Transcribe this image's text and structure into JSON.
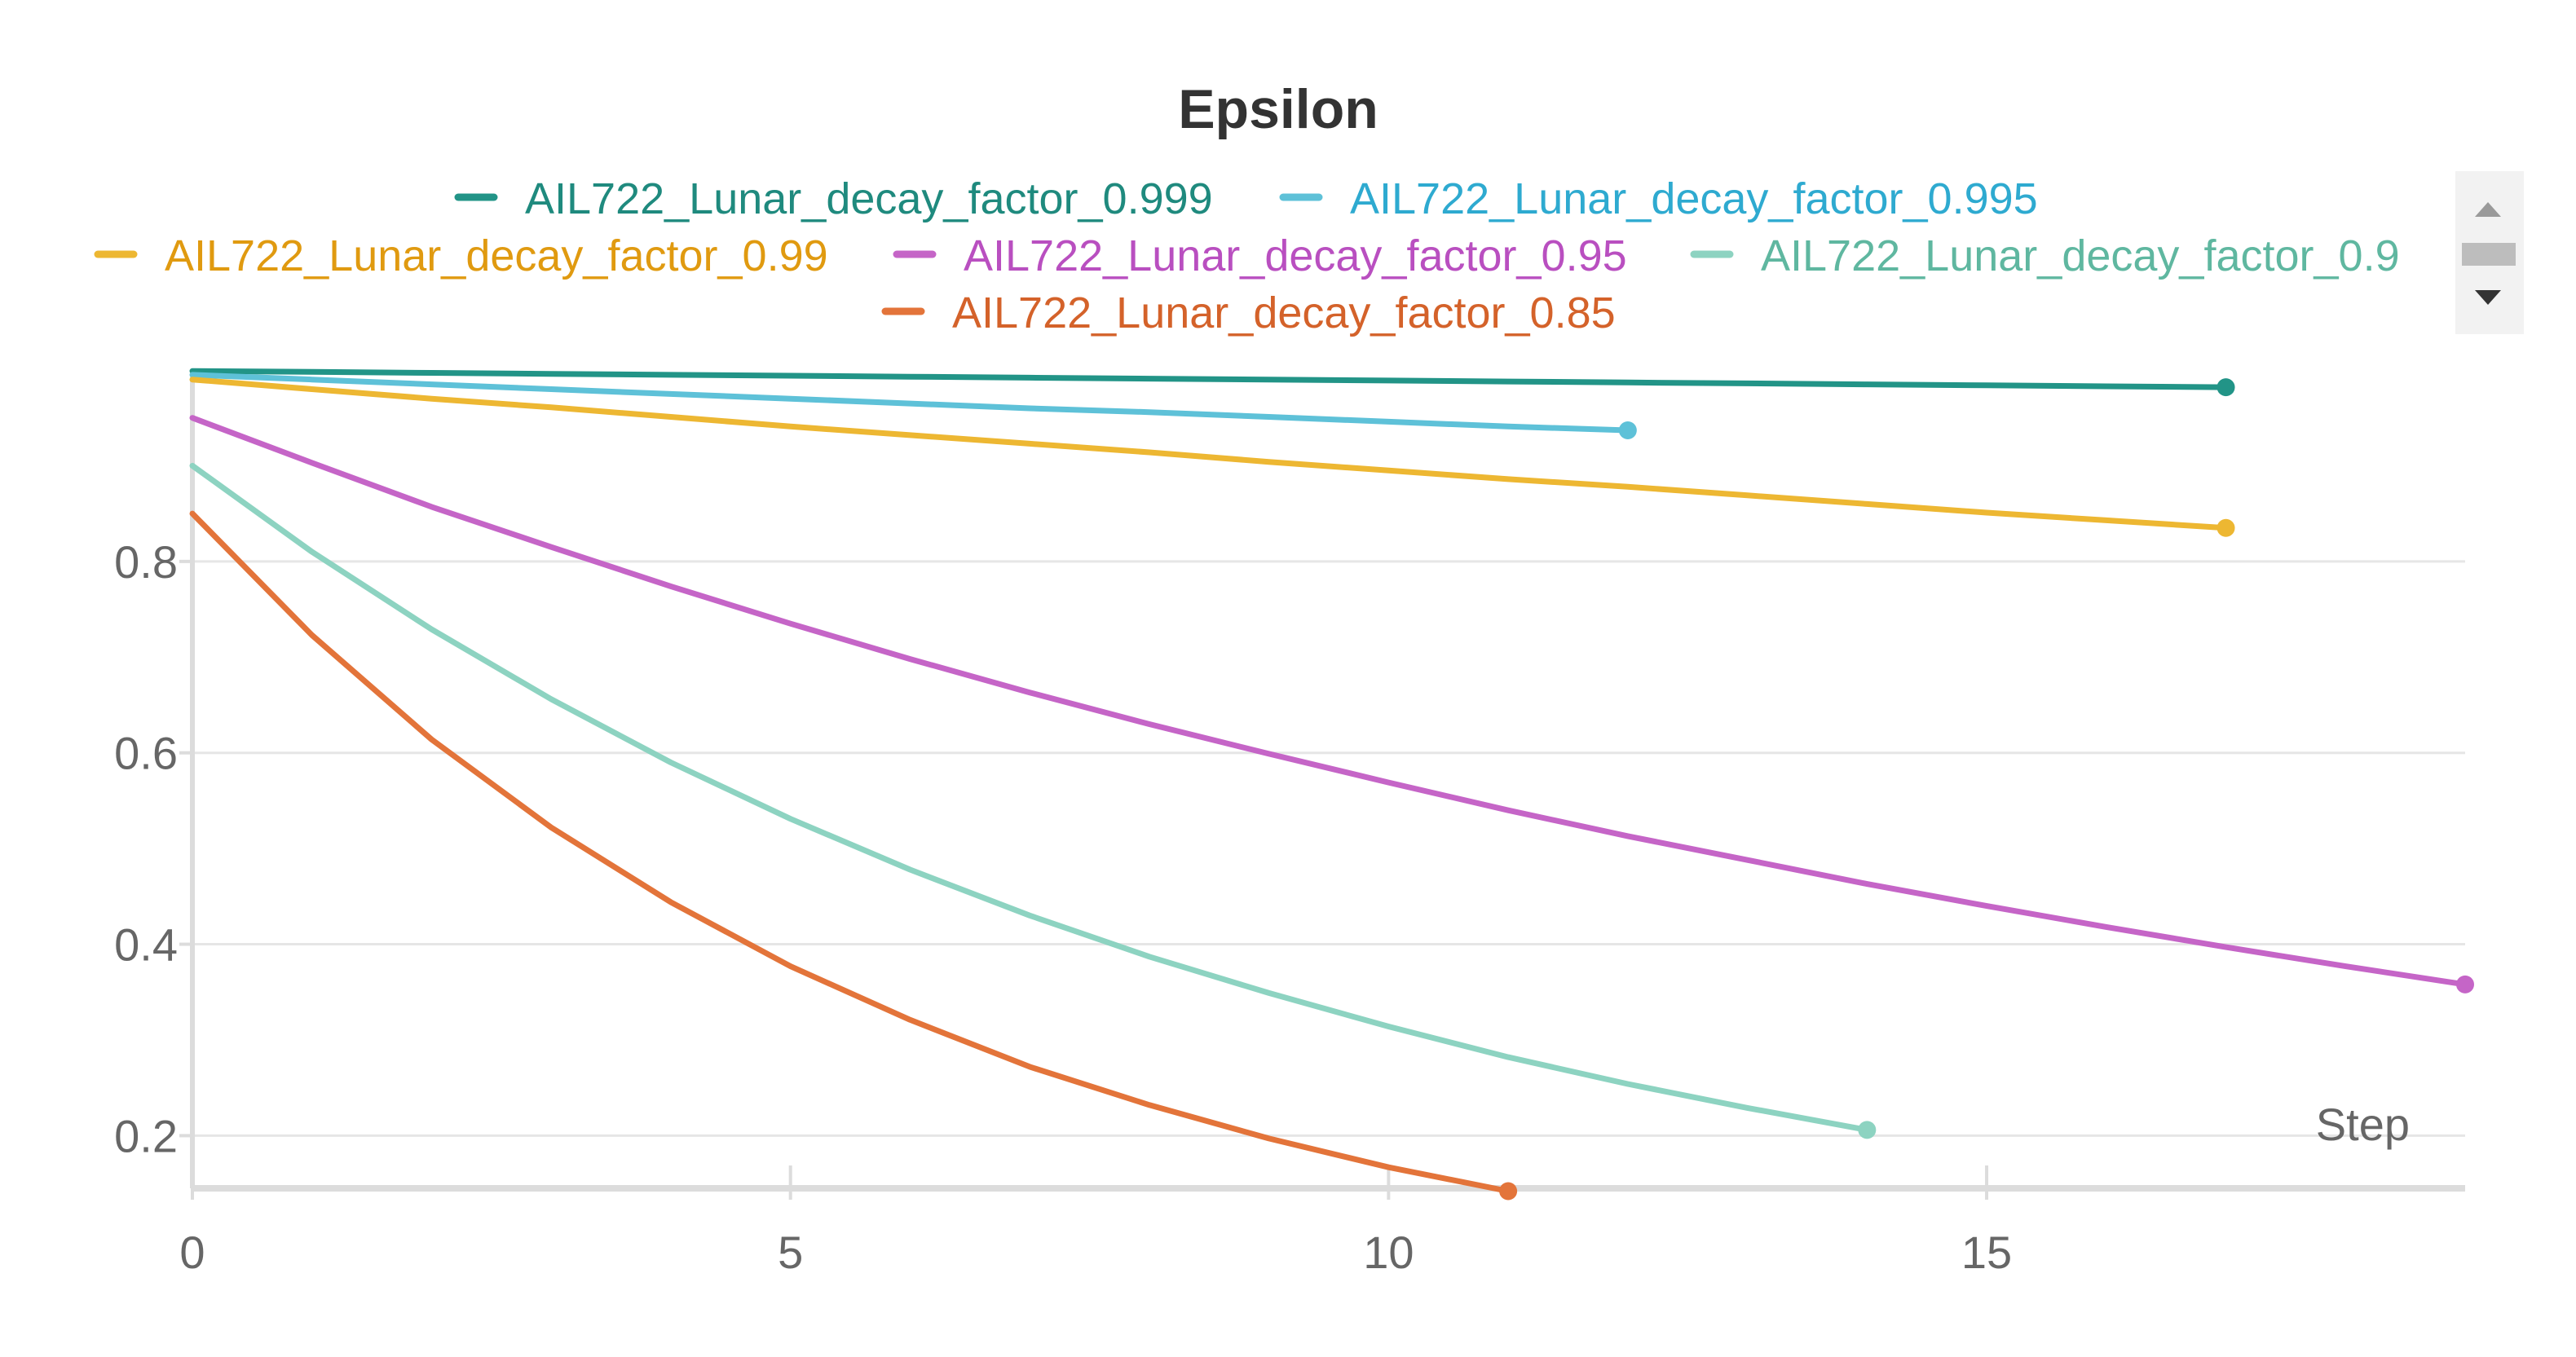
{
  "colors": {
    "title": "#333333",
    "tick": "#666666",
    "grid": "#e6e6e6",
    "axis": "#dcdcdc",
    "scroll_bg": "#f2f2f2",
    "scroll_arrow_up": "#9a9a9a",
    "scroll_arrow_down": "#333333",
    "scroll_thumb": "#bdbdbd"
  },
  "legend": {
    "scroll_up_icon": "triangle-up",
    "scroll_down_icon": "triangle-down"
  },
  "chart_data": {
    "type": "line",
    "title": "Epsilon",
    "xlabel": "Step",
    "ylabel": "",
    "xlim": [
      0,
      19
    ],
    "ylim": [
      0.145,
      1.0
    ],
    "x_ticks": [
      0,
      5,
      10,
      15
    ],
    "x_tick_labels": [
      "0",
      "5",
      "10",
      "15"
    ],
    "y_ticks": [
      0.2,
      0.4,
      0.6,
      0.8
    ],
    "y_tick_labels": [
      "0.2",
      "0.4",
      "0.6",
      "0.8"
    ],
    "grid": true,
    "legend_position": "top",
    "series": [
      {
        "name": "AIL722_Lunar_decay_factor_0.999",
        "color": "#229487",
        "text_color": "#1f8a7e",
        "x": [
          0,
          1,
          2,
          3,
          4,
          5,
          6,
          7,
          8,
          9,
          10,
          11,
          12,
          13,
          14,
          15,
          16,
          17
        ],
        "y": [
          0.999,
          0.998,
          0.997,
          0.996,
          0.995,
          0.994,
          0.993,
          0.992,
          0.991,
          0.99,
          0.989,
          0.988,
          0.987,
          0.986,
          0.985,
          0.984,
          0.983,
          0.982
        ]
      },
      {
        "name": "AIL722_Lunar_decay_factor_0.995",
        "color": "#5ec1d8",
        "text_color": "#2eaad0",
        "x": [
          0,
          1,
          2,
          3,
          4,
          5,
          6,
          7,
          8,
          9,
          10,
          11,
          12
        ],
        "y": [
          0.995,
          0.99,
          0.985,
          0.98,
          0.975,
          0.97,
          0.965,
          0.96,
          0.956,
          0.951,
          0.946,
          0.941,
          0.937
        ]
      },
      {
        "name": "AIL722_Lunar_decay_factor_0.99",
        "color": "#edb732",
        "text_color": "#e09a10",
        "x": [
          0,
          1,
          2,
          3,
          4,
          5,
          6,
          7,
          8,
          9,
          10,
          11,
          12,
          13,
          14,
          15,
          16,
          17
        ],
        "y": [
          0.99,
          0.98,
          0.97,
          0.961,
          0.951,
          0.941,
          0.932,
          0.923,
          0.914,
          0.904,
          0.895,
          0.886,
          0.878,
          0.869,
          0.86,
          0.851,
          0.843,
          0.835
        ]
      },
      {
        "name": "AIL722_Lunar_decay_factor_0.95",
        "color": "#c565c7",
        "text_color": "#b94fc0",
        "x": [
          0,
          1,
          2,
          3,
          4,
          5,
          6,
          7,
          8,
          9,
          10,
          11,
          12,
          13,
          14,
          15,
          16,
          17,
          18,
          19
        ],
        "y": [
          0.95,
          0.903,
          0.857,
          0.815,
          0.774,
          0.735,
          0.698,
          0.663,
          0.63,
          0.599,
          0.569,
          0.54,
          0.513,
          0.488,
          0.463,
          0.44,
          0.418,
          0.397,
          0.377,
          0.358
        ]
      },
      {
        "name": "AIL722_Lunar_decay_factor_0.9",
        "color": "#8dd3c1",
        "text_color": "#5fb7a0",
        "x": [
          0,
          1,
          2,
          3,
          4,
          5,
          6,
          7,
          8,
          9,
          10,
          11,
          12,
          13,
          14
        ],
        "y": [
          0.9,
          0.81,
          0.729,
          0.656,
          0.59,
          0.531,
          0.478,
          0.43,
          0.387,
          0.349,
          0.314,
          0.282,
          0.254,
          0.229,
          0.206
        ]
      },
      {
        "name": "AIL722_Lunar_decay_factor_0.85",
        "color": "#e3743a",
        "text_color": "#d4622a",
        "x": [
          0,
          1,
          2,
          3,
          4,
          5,
          6,
          7,
          8,
          9,
          10,
          11
        ],
        "y": [
          0.85,
          0.723,
          0.614,
          0.522,
          0.444,
          0.377,
          0.321,
          0.272,
          0.232,
          0.197,
          0.167,
          0.142
        ]
      }
    ]
  }
}
